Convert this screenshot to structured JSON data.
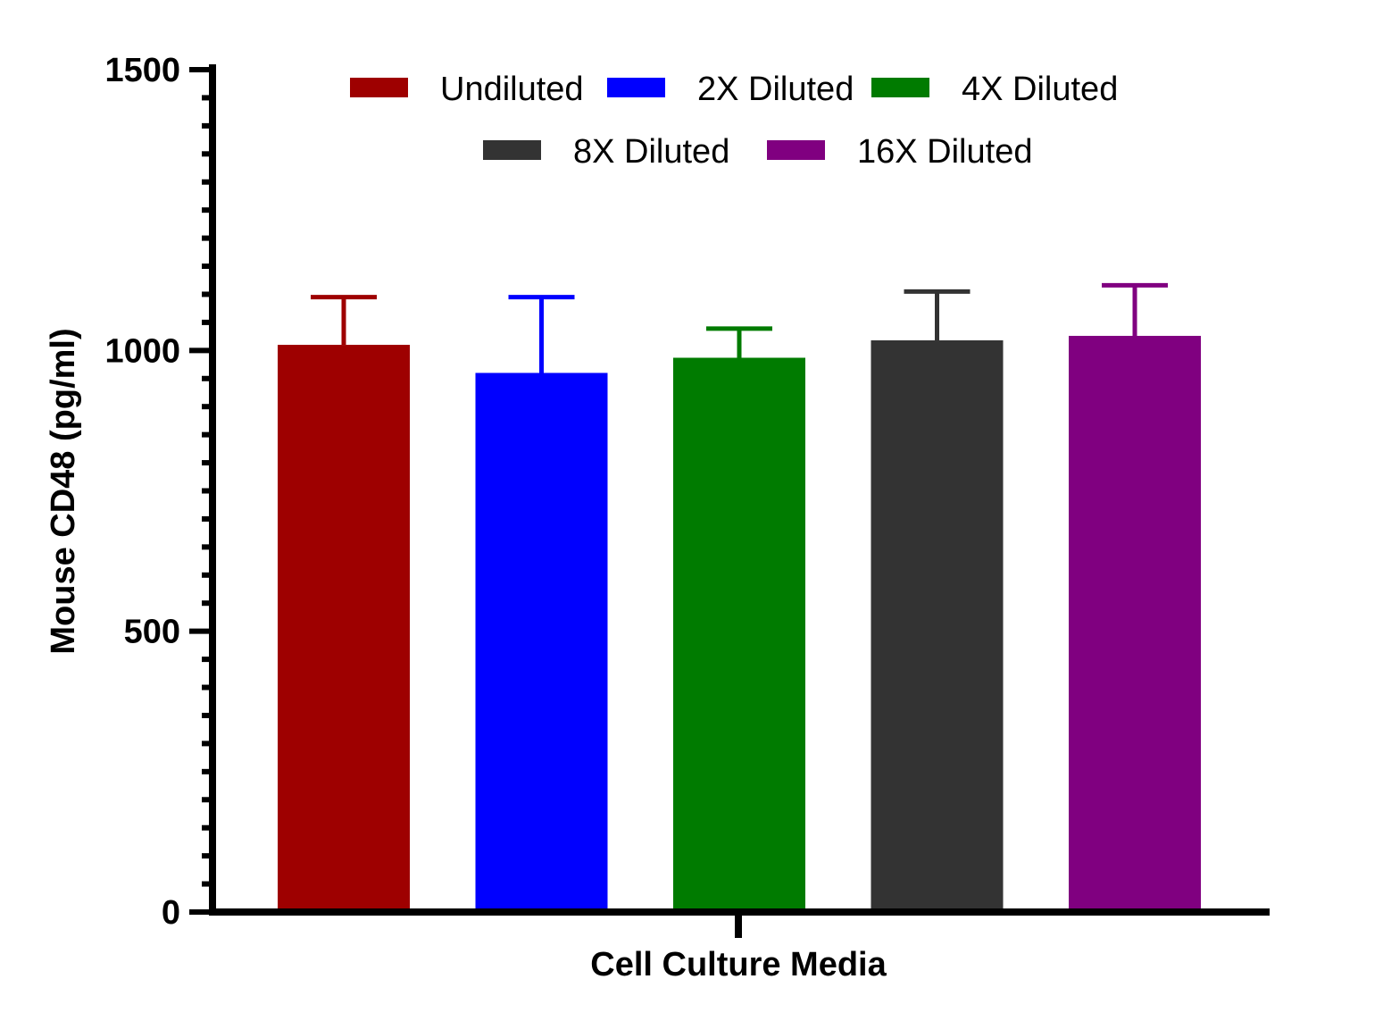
{
  "chart_data": {
    "type": "bar",
    "title": "",
    "xlabel": "Cell Culture Media",
    "ylabel": "Mouse CD48 (pg/ml)",
    "ylim": [
      0,
      1500
    ],
    "yticks": [
      "0",
      "500",
      "1000",
      "1500"
    ],
    "category": "Cell Culture Media",
    "legend_position": "top",
    "grid": false,
    "series": [
      {
        "name": "Undiluted",
        "value": 1010,
        "error": 85,
        "color": "#9e0000"
      },
      {
        "name": "2X Diluted",
        "value": 960,
        "error": 135,
        "color": "#0000ff"
      },
      {
        "name": "4X Diluted",
        "value": 987,
        "error": 52,
        "color": "#007b00"
      },
      {
        "name": "8X Diluted",
        "value": 1018,
        "error": 87,
        "color": "#333333"
      },
      {
        "name": "16X Diluted",
        "value": 1026,
        "error": 90,
        "color": "#800080"
      }
    ]
  }
}
